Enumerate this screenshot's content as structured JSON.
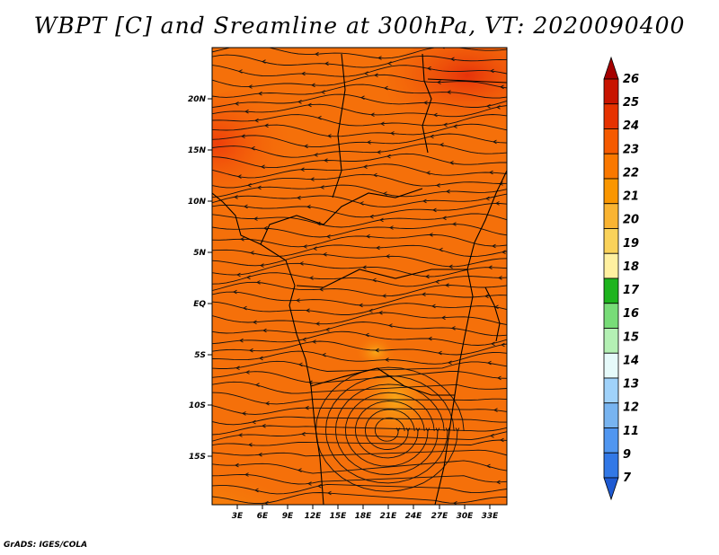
{
  "title": "WBPT [C] and Sreamline at 300hPa, VT: 2020090400",
  "credit": "GrADS: IGES/COLA",
  "map": {
    "lat_labels": [
      "20N",
      "15N",
      "10N",
      "5N",
      "EQ",
      "5S",
      "10S",
      "15S"
    ],
    "lon_labels": [
      "3E",
      "6E",
      "9E",
      "12E",
      "15E",
      "18E",
      "21E",
      "24E",
      "27E",
      "30E",
      "33E"
    ]
  },
  "colorbar": {
    "labels": [
      "26",
      "25",
      "24",
      "23",
      "22",
      "21",
      "20",
      "19",
      "18",
      "17",
      "16",
      "15",
      "14",
      "13",
      "12",
      "11",
      "9",
      "7"
    ],
    "colors": [
      "#a50000",
      "#c81400",
      "#e63200",
      "#f55a00",
      "#fa7800",
      "#fa9600",
      "#fab432",
      "#fad25a",
      "#fff0a0",
      "#1eb41e",
      "#78dc78",
      "#b4f0b4",
      "#e6fafa",
      "#a0d2fa",
      "#78b4f0",
      "#5096f0",
      "#3278e6",
      "#1e5ad2"
    ]
  }
}
